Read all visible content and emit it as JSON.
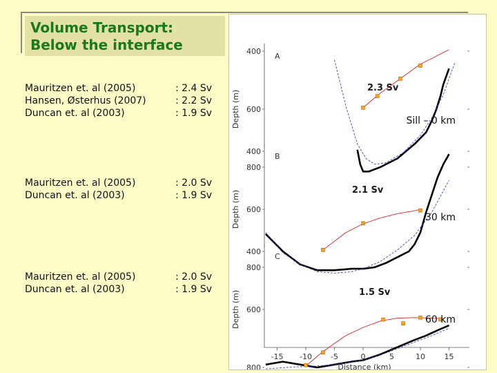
{
  "slide": {
    "title_lines": [
      "Volume Transport:",
      "Below the interface"
    ]
  },
  "groups": [
    {
      "refs": [
        {
          "name": "Mauritzen et. al (2005)",
          "value": ": 2.4 Sv"
        },
        {
          "name": "Hansen, Østerhus (2007)",
          "value": ": 2.2 Sv"
        },
        {
          "name": "Duncan et. al (2003)",
          "value": ": 1.9 Sv"
        }
      ]
    },
    {
      "refs": [
        {
          "name": "Mauritzen et. al (2005)",
          "value": ": 2.0 Sv"
        },
        {
          "name": "Duncan et. al (2003)",
          "value": ": 1.9 Sv"
        }
      ]
    },
    {
      "refs": [
        {
          "name": "Mauritzen et. al (2005)",
          "value": ": 2.0 Sv"
        },
        {
          "name": "Duncan et. al (2003)",
          "value": ": 1.9 Sv"
        }
      ]
    }
  ],
  "figure": {
    "x_label": "Distance (km)",
    "y_label": "Depth (m)",
    "x_ticks": [
      -15,
      -10,
      -5,
      0,
      5,
      10,
      15
    ],
    "y_ticks": [
      400,
      600,
      800
    ],
    "panels": [
      {
        "letter": "A",
        "transport": "2.3 Sv",
        "section_label": "Sill – 0 km"
      },
      {
        "letter": "B",
        "transport": "2.1 Sv",
        "section_label": "30 km"
      },
      {
        "letter": "C",
        "transport": "1.5 Sv",
        "section_label": "60 km"
      }
    ],
    "colors": {
      "bathymetry": "#000000",
      "parabola": "#3344cc",
      "interface": "#dd2222",
      "marker": "#f5a623"
    }
  },
  "chart_data": {
    "type": "line",
    "xlabel": "Distance (km)",
    "ylabel": "Depth (m)",
    "xlim": [
      -17,
      18
    ],
    "ylim": [
      900,
      350
    ],
    "panels": [
      {
        "letter": "A",
        "annotation": "2.3 Sv",
        "section": "Sill – 0 km",
        "series": [
          {
            "values": [
              [
                -1,
                740
              ],
              [
                -0.5,
                790
              ],
              [
                0,
                815
              ],
              [
                1,
                815
              ],
              [
                3,
                800
              ],
              [
                6,
                770
              ],
              [
                9,
                720
              ],
              [
                11,
                680
              ],
              [
                12,
                640
              ],
              [
                12.8,
                600
              ],
              [
                13.5,
                555
              ],
              [
                14,
                515
              ],
              [
                15,
                460
              ]
            ]
          },
          {
            "values": [
              [
                -5,
                430
              ],
              [
                -3,
                590
              ],
              [
                -1,
                720
              ],
              [
                0.5,
                770
              ],
              [
                2,
                790
              ],
              [
                4,
                785
              ],
              [
                7,
                750
              ],
              [
                10,
                690
              ],
              [
                12,
                630
              ],
              [
                14,
                550
              ],
              [
                16,
                440
              ]
            ]
          },
          {
            "values": [
              [
                0,
                595
              ],
              [
                3,
                545
              ],
              [
                6.5,
                495
              ],
              [
                10,
                445
              ],
              [
                12.5,
                420
              ],
              [
                15,
                395
              ]
            ]
          },
          {
            "values": [
              [
                0,
                595
              ],
              [
                2.5,
                555
              ],
              [
                6.5,
                495
              ],
              [
                10,
                450
              ]
            ]
          }
        ]
      },
      {
        "letter": "B",
        "annotation": "2.1 Sv",
        "section": "30 km",
        "series": [
          {
            "values": [
              [
                -17,
                685
              ],
              [
                -14,
                745
              ],
              [
                -11,
                790
              ],
              [
                -8,
                810
              ],
              [
                -5,
                810
              ],
              [
                -2,
                805
              ],
              [
                0,
                805
              ],
              [
                2,
                800
              ],
              [
                4,
                785
              ],
              [
                6,
                765
              ],
              [
                8,
                745
              ],
              [
                9,
                720
              ],
              [
                10,
                680
              ],
              [
                11,
                610
              ],
              [
                12,
                550
              ],
              [
                13,
                490
              ],
              [
                14,
                445
              ],
              [
                15,
                410
              ]
            ]
          },
          {
            "values": [
              [
                -17,
                680
              ],
              [
                -14,
                750
              ],
              [
                -11,
                790
              ],
              [
                -8,
                815
              ],
              [
                -5,
                820
              ],
              [
                -2,
                815
              ],
              [
                0,
                805
              ],
              [
                3,
                780
              ],
              [
                6,
                740
              ],
              [
                9,
                690
              ],
              [
                12,
                610
              ],
              [
                15,
                500
              ]
            ]
          },
          {
            "values": [
              [
                -7,
                740
              ],
              [
                -3,
                680
              ],
              [
                0,
                650
              ],
              [
                3,
                630
              ],
              [
                6,
                615
              ],
              [
                9,
                605
              ],
              [
                10,
                600
              ]
            ]
          },
          {
            "values": [
              [
                -7,
                740
              ],
              [
                0,
                648
              ],
              [
                10,
                604
              ]
            ]
          }
        ]
      },
      {
        "letter": "C",
        "annotation": "1.5 Sv",
        "section": "60 km",
        "series": [
          {
            "values": [
              [
                -17,
                790
              ],
              [
                -14,
                780
              ],
              [
                -11,
                790
              ],
              [
                -8,
                800
              ],
              [
                -5,
                790
              ],
              [
                -2,
                780
              ],
              [
                0,
                775
              ],
              [
                3,
                755
              ],
              [
                6,
                730
              ],
              [
                9,
                705
              ],
              [
                11,
                690
              ],
              [
                13,
                672
              ],
              [
                15,
                655
              ]
            ]
          },
          {
            "values": [
              [
                -17,
                805
              ],
              [
                -12,
                798
              ],
              [
                -8,
                795
              ],
              [
                -4,
                788
              ],
              [
                0,
                775
              ],
              [
                4,
                750
              ],
              [
                8,
                720
              ],
              [
                12,
                690
              ],
              [
                15,
                665
              ]
            ]
          },
          {
            "values": [
              [
                -10,
                795
              ],
              [
                -7,
                745
              ],
              [
                -3,
                690
              ],
              [
                0,
                662
              ],
              [
                3,
                640
              ],
              [
                6,
                630
              ],
              [
                9,
                628
              ],
              [
                12,
                630
              ],
              [
                14,
                632
              ]
            ]
          },
          {
            "values": [
              [
                -10,
                792
              ],
              [
                -7,
                748
              ],
              [
                3.5,
                635
              ],
              [
                7,
                648
              ],
              [
                10,
                628
              ],
              [
                13.5,
                634
              ]
            ]
          }
        ]
      }
    ]
  }
}
